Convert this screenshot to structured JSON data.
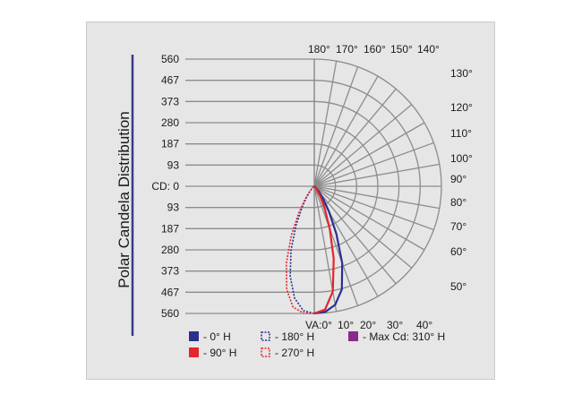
{
  "chart_data": {
    "type": "polar",
    "title": "Polar Candela Distribution",
    "radial_max": 560,
    "radial_labels": [
      "560",
      "467",
      "373",
      "280",
      "187",
      "93",
      "CD: 0",
      "93",
      "187",
      "280",
      "373",
      "467",
      "560"
    ],
    "angle_labels_right": [
      "130°",
      "120°",
      "110°",
      "100°",
      "90°",
      "80°",
      "70°",
      "60°",
      "50°"
    ],
    "angle_labels_top": [
      "180°",
      "170°",
      "160°",
      "150°",
      "140°"
    ],
    "angle_labels_bottom": [
      "VA:0°",
      "10°",
      "20°",
      "30°",
      "40°"
    ],
    "series": [
      {
        "name": "- 0° H",
        "color": "#2b2f8f",
        "dash": "solid",
        "angles": [
          0,
          5,
          10,
          15,
          20,
          25,
          30,
          35,
          40,
          50,
          60,
          70,
          80,
          90
        ],
        "values": [
          560,
          555,
          530,
          470,
          360,
          230,
          130,
          70,
          35,
          10,
          4,
          2,
          1,
          0
        ]
      },
      {
        "name": "- 90° H",
        "color": "#e3262b",
        "dash": "solid",
        "angles": [
          0,
          5,
          10,
          15,
          20,
          25,
          30,
          35,
          40,
          50,
          60,
          70,
          80,
          90
        ],
        "values": [
          560,
          545,
          470,
          330,
          200,
          110,
          55,
          25,
          12,
          5,
          2,
          1,
          0,
          0
        ]
      },
      {
        "name": "- 180° H",
        "color": "#2b2f8f",
        "dash": "dotted",
        "angles": [
          0,
          5,
          10,
          15,
          20,
          25,
          30,
          35,
          40,
          50,
          60,
          70,
          80,
          90
        ],
        "values": [
          560,
          550,
          500,
          410,
          300,
          190,
          110,
          60,
          30,
          10,
          4,
          2,
          1,
          0
        ]
      },
      {
        "name": "- 270° H",
        "color": "#e3262b",
        "dash": "dotted",
        "angles": [
          0,
          5,
          10,
          15,
          20,
          25,
          30,
          35,
          40,
          50,
          60,
          70,
          80,
          90
        ],
        "values": [
          560,
          560,
          540,
          470,
          360,
          240,
          140,
          75,
          38,
          12,
          5,
          2,
          1,
          0
        ]
      }
    ],
    "legend": [
      {
        "label": "- 0° H",
        "color": "#2b2f8f",
        "style": "solid"
      },
      {
        "label": "- 180° H",
        "color": "#2b2f8f",
        "style": "dotted"
      },
      {
        "label": "- Max Cd: 310° H",
        "color": "#8a2a8a",
        "style": "solid"
      },
      {
        "label": "- 90° H",
        "color": "#e3262b",
        "style": "solid"
      },
      {
        "label": "- 270° H",
        "color": "#e3262b",
        "style": "dotted"
      }
    ]
  }
}
